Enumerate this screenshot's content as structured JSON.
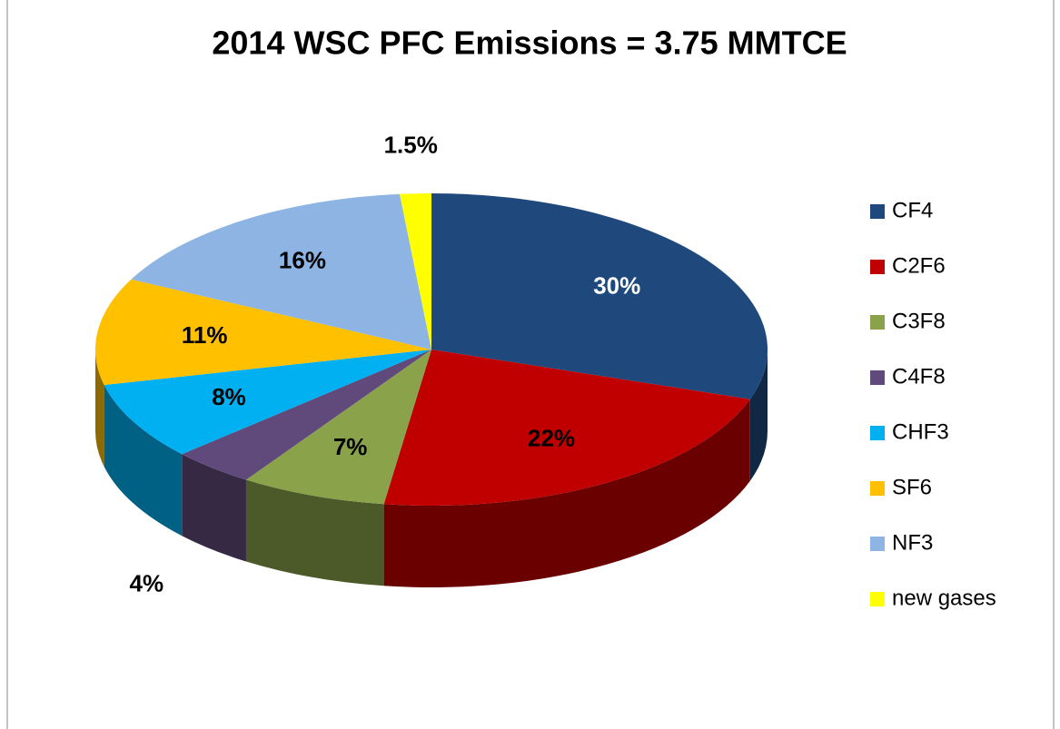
{
  "chart_data": {
    "type": "pie3d",
    "title": "2014 WSC PFC Emissions = 3.75 MMTCE",
    "categories": [
      "CF4",
      "C2F6",
      "C3F8",
      "C4F8",
      "CHF3",
      "SF6",
      "NF3",
      "new gases"
    ],
    "values": [
      30,
      22,
      7,
      4,
      8,
      11,
      16,
      1.5
    ],
    "value_labels": [
      "30%",
      "22%",
      "7%",
      "4%",
      "8%",
      "11%",
      "16%",
      "1.5%"
    ],
    "colors": [
      "#1f497d",
      "#c00000",
      "#8aa34a",
      "#604a7b",
      "#00b0f0",
      "#ffc000",
      "#8eb4e3",
      "#ffff00"
    ],
    "value_label_colors": [
      "#ffffff",
      "#000000",
      "#000000",
      "#000000",
      "#000000",
      "#000000",
      "#000000",
      "#000000"
    ],
    "legend": "right"
  }
}
